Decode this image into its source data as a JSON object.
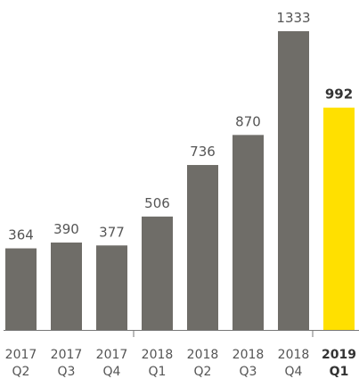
{
  "chart_data": {
    "type": "bar",
    "categories": [
      [
        "2017",
        "Q2"
      ],
      [
        "2017",
        "Q3"
      ],
      [
        "2017",
        "Q4"
      ],
      [
        "2018",
        "Q1"
      ],
      [
        "2018",
        "Q2"
      ],
      [
        "2018",
        "Q3"
      ],
      [
        "2018",
        "Q4"
      ],
      [
        "2019",
        "Q1"
      ]
    ],
    "values": [
      364,
      390,
      377,
      506,
      736,
      870,
      1333,
      992
    ],
    "value_labels": [
      "364",
      "390",
      "377",
      "506",
      "736",
      "870",
      "1333",
      "992"
    ],
    "highlight_index": 7,
    "ylim": [
      0,
      1333
    ],
    "grid": false,
    "colors": {
      "bar": "#6f6d68",
      "highlight": "#ffe000",
      "axis": "#777777"
    }
  }
}
